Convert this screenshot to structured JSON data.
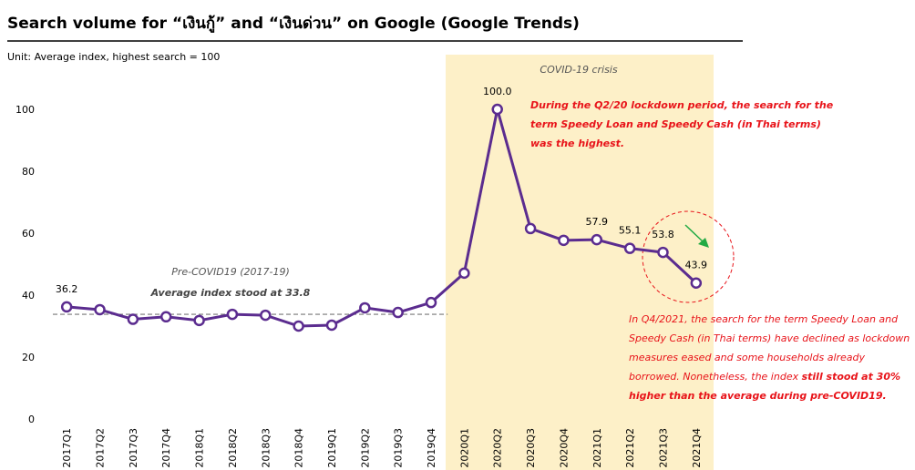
{
  "chart_data": {
    "type": "line",
    "title": "Search volume for “เงินกู้” and “เงินด่วน” on Google (Google Trends)",
    "unit_label": "Unit: Average index, highest search = 100",
    "categories": [
      "2017Q1",
      "2017Q2",
      "2017Q3",
      "2017Q4",
      "2018Q1",
      "2018Q2",
      "2018Q3",
      "2018Q4",
      "2019Q1",
      "2019Q2",
      "2019Q3",
      "2019Q4",
      "2020Q1",
      "2020Q2",
      "2020Q3",
      "2020Q4",
      "2021Q1",
      "2021Q2",
      "2021Q3",
      "2021Q4"
    ],
    "values": [
      36.2,
      35.3,
      32.2,
      33.0,
      31.8,
      33.8,
      33.5,
      30.0,
      30.3,
      35.9,
      34.4,
      37.6,
      47.1,
      100.0,
      61.5,
      57.7,
      57.9,
      55.1,
      53.8,
      43.9
    ],
    "value_labels": [
      "36.2",
      null,
      null,
      null,
      null,
      null,
      null,
      null,
      null,
      null,
      null,
      null,
      null,
      "100.0",
      null,
      null,
      "57.9",
      "55.1",
      "53.8",
      "43.9"
    ],
    "color": "#5b2c8f",
    "ylim": [
      0,
      100
    ],
    "yticks": [
      0,
      20,
      40,
      60,
      80,
      100
    ],
    "grid": false,
    "average_line": 33.8,
    "covid_label": "COVID-19 crisis",
    "pre_covid_label": "Pre-COVID19 (2017-19)",
    "average_label": "Average index stood at 33.8",
    "note_peak": [
      "During the Q2/20 lockdown period, the search for the",
      "term Speedy Loan and Speedy Cash (in Thai terms)",
      "was the highest."
    ],
    "note_recent": [
      [
        {
          "text": "In Q4/2021, the search for the term Speedy Loan and",
          "bold": false
        }
      ],
      [
        {
          "text": "Speedy Cash (in Thai terms) have declined as lockdown",
          "bold": false
        }
      ],
      [
        {
          "text": "measures eased and some households already",
          "bold": false
        }
      ],
      [
        {
          "text": "borrowed. Nonetheless, the index ",
          "bold": false
        },
        {
          "text": "still stood at 30%",
          "bold": true
        }
      ],
      [
        {
          "text": "higher than the average during pre-COVID19.",
          "bold": true
        }
      ]
    ]
  }
}
